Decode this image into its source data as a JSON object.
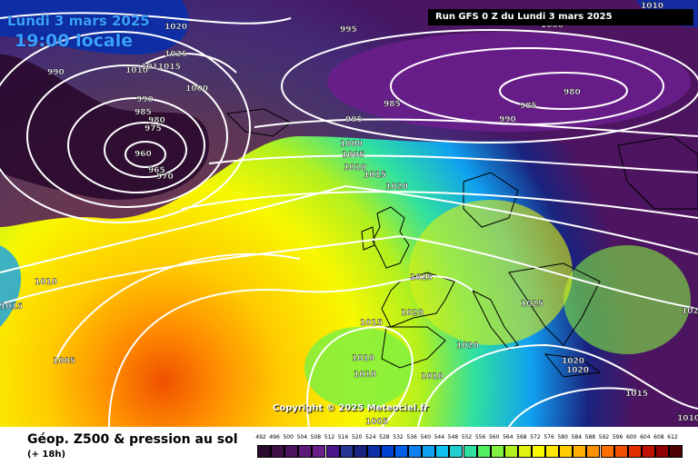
{
  "header": {
    "date": "Lundi 3 mars 2025",
    "time": "19:00 locale",
    "run": "Run GFS 0 Z du Lundi 3 mars 2025"
  },
  "copyright": "Copyright © 2025 Meteociel.fr",
  "legend": {
    "title": "Géop. Z500 & pression au sol",
    "subtitle": "(+ 18h)",
    "values": [
      "492",
      "496",
      "500",
      "504",
      "508",
      "512",
      "516",
      "520",
      "524",
      "528",
      "532",
      "536",
      "540",
      "544",
      "548",
      "552",
      "556",
      "560",
      "564",
      "568",
      "572",
      "576",
      "580",
      "584",
      "588",
      "592",
      "596",
      "600",
      "604",
      "608",
      "612"
    ],
    "colors": [
      "#2a0a2e",
      "#3d0f45",
      "#4d1560",
      "#5e1a78",
      "#6a1e8c",
      "#4a148c",
      "#283593",
      "#1a237e",
      "#0d2ea6",
      "#0040d0",
      "#0060e8",
      "#1080f0",
      "#10a0f0",
      "#10c0f0",
      "#20d0d0",
      "#30e0a0",
      "#50f060",
      "#80f040",
      "#b0f020",
      "#e0f010",
      "#f8f800",
      "#ffe600",
      "#ffcc00",
      "#ffb000",
      "#ff9000",
      "#ff7000",
      "#f05000",
      "#e03000",
      "#c01000",
      "#900000",
      "#500000"
    ]
  },
  "isobar_labels": [
    {
      "text": "1020"
    },
    {
      "text": "1025"
    },
    {
      "text": "1010"
    },
    {
      "text": "1011015"
    },
    {
      "text": "1000"
    },
    {
      "text": "990"
    },
    {
      "text": "990"
    },
    {
      "text": "985"
    },
    {
      "text": "980"
    },
    {
      "text": "975"
    },
    {
      "text": "960"
    },
    {
      "text": "965"
    },
    {
      "text": "970"
    },
    {
      "text": "995"
    },
    {
      "text": "995"
    },
    {
      "text": "985"
    },
    {
      "text": "990"
    },
    {
      "text": "985"
    },
    {
      "text": "980"
    },
    {
      "text": "1010"
    },
    {
      "text": "1000"
    },
    {
      "text": "1000"
    },
    {
      "text": "1005"
    },
    {
      "text": "1010"
    },
    {
      "text": "1015"
    },
    {
      "text": "1020"
    },
    {
      "text": "1025"
    },
    {
      "text": "1020"
    },
    {
      "text": "1025"
    },
    {
      "text": "1010"
    },
    {
      "text": "1015"
    },
    {
      "text": "1005"
    },
    {
      "text": "1015"
    },
    {
      "text": "1010"
    },
    {
      "text": "1010"
    },
    {
      "text": "1010"
    },
    {
      "text": "1020"
    },
    {
      "text": "1020"
    },
    {
      "text": "1020"
    },
    {
      "text": "1015"
    },
    {
      "text": "1005"
    },
    {
      "text": "1010"
    },
    {
      "text": "102"
    }
  ]
}
